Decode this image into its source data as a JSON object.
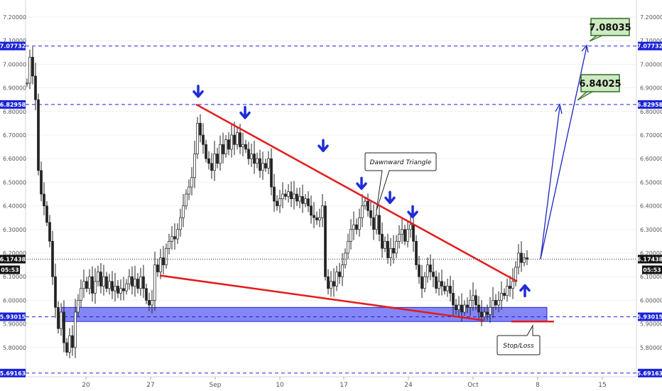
{
  "chart_data": {
    "type": "candlestick",
    "ylim": [
      5.67,
      7.22
    ],
    "x_categories": [
      "20",
      "27",
      "Sep",
      "10",
      "17",
      "24",
      "Oct",
      "8",
      "15"
    ],
    "yticks": [
      "7.20000",
      "7.10000",
      "7.00000",
      "6.90000",
      "6.80000",
      "6.70000",
      "6.60000",
      "6.50000",
      "6.40000",
      "6.30000",
      "6.20000",
      "6.10000",
      "6.00000",
      "5.90000",
      "5.80000",
      "5.70000"
    ],
    "level_tags": [
      {
        "label": "7.07732",
        "value": 7.07732,
        "color": "#1a23d8"
      },
      {
        "label": "6.82958",
        "value": 6.82958,
        "color": "#1a23d8"
      },
      {
        "label": "5.93015",
        "value": 5.93015,
        "color": "#1a23d8"
      },
      {
        "label": "5.69163",
        "value": 5.69163,
        "color": "#1a23d8"
      }
    ],
    "last_price": {
      "label": "6.17438",
      "value": 6.17438,
      "timer": "05:53",
      "color": "#111111"
    },
    "targets": [
      {
        "label": "7.08035",
        "value": 7.08035
      },
      {
        "label": "6.84025",
        "value": 6.84025
      }
    ],
    "annotations": {
      "triangle_label": "Dawnward    Triangle",
      "stop_loss_label": "Stop/Loss"
    },
    "pattern": {
      "upper_line": [
        [
          6.82958,
          0
        ],
        [
          6.08,
          1
        ]
      ],
      "lower_line": [
        [
          6.1,
          0
        ],
        [
          5.91,
          1
        ]
      ],
      "support_zone": [
        5.91,
        5.97
      ]
    },
    "colors": {
      "line": "#e41b1b",
      "level": "#1a23d8",
      "zone": "#5b5ef2",
      "arrow": "#1f2dd6",
      "projection": "#1a23c0",
      "target_bg": "#cdeac3",
      "target_border": "#2f6e1f"
    }
  }
}
